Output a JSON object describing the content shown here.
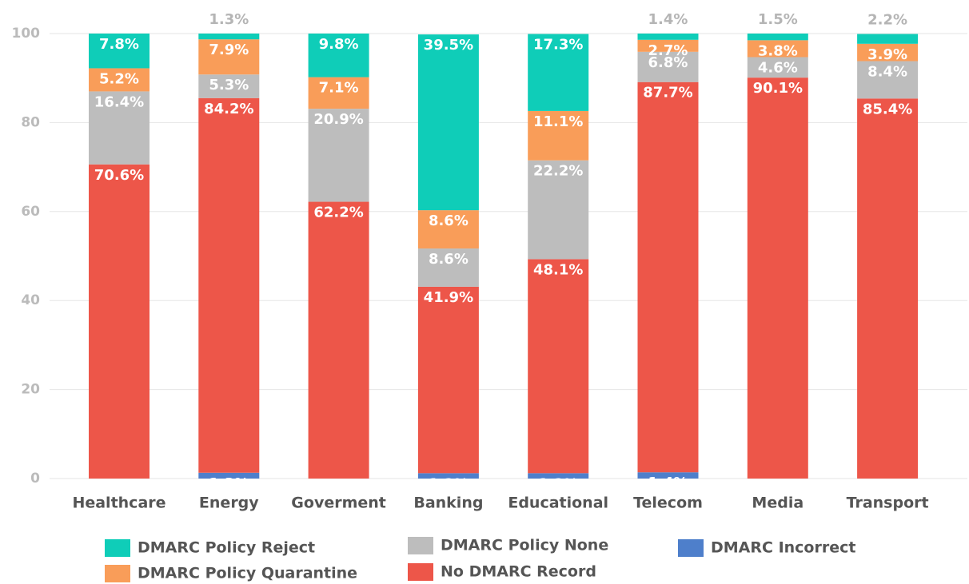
{
  "chart_data": {
    "type": "stacked_bar",
    "categories": [
      "Healthcare",
      "Energy",
      "Goverment",
      "Banking",
      "Educational",
      "Telecom",
      "Media",
      "Transport"
    ],
    "series": [
      {
        "name": "DMARC Incorrect",
        "color": "#4e7fcb",
        "values": [
          null,
          1.3,
          null,
          1.2,
          1.2,
          1.4,
          null,
          null
        ],
        "value_labels": [
          null,
          "1.3%",
          null,
          "1.2%",
          "1.2%",
          "1.4%",
          null,
          null
        ]
      },
      {
        "name": "No DMARC Record",
        "color": "#ed5649",
        "values": [
          70.6,
          84.2,
          62.2,
          41.9,
          48.1,
          87.7,
          90.1,
          85.4
        ],
        "value_labels": [
          "70.6%",
          "84.2%",
          "62.2%",
          "41.9%",
          "48.1%",
          "87.7%",
          "90.1%",
          "85.4%"
        ]
      },
      {
        "name": "DMARC Policy None",
        "color": "#bdbdbd",
        "values": [
          16.4,
          5.3,
          20.9,
          8.6,
          22.2,
          6.8,
          4.6,
          8.4
        ],
        "value_labels": [
          "16.4%",
          "5.3%",
          "20.9%",
          "8.6%",
          "22.2%",
          "6.8%",
          "4.6%",
          "8.4%"
        ]
      },
      {
        "name": "DMARC Policy Quarantine",
        "color": "#f99d59",
        "values": [
          5.2,
          7.9,
          7.1,
          8.6,
          11.1,
          2.7,
          3.8,
          3.9
        ],
        "value_labels": [
          "5.2%",
          "7.9%",
          "7.1%",
          "8.6%",
          "11.1%",
          "2.7%",
          "3.8%",
          "3.9%"
        ]
      },
      {
        "name": "DMARC Policy Reject",
        "color": "#0fcdb8",
        "values": [
          7.8,
          1.3,
          9.8,
          39.5,
          17.3,
          1.4,
          1.5,
          2.2
        ],
        "value_labels": [
          "7.8%",
          "1.3%",
          "9.8%",
          "39.5%",
          "17.3%",
          "1.4%",
          "1.5%",
          "2.2%"
        ]
      }
    ],
    "ylim": [
      0,
      100
    ],
    "yticks": [
      0,
      20,
      40,
      60,
      80,
      100
    ],
    "grid": true
  }
}
